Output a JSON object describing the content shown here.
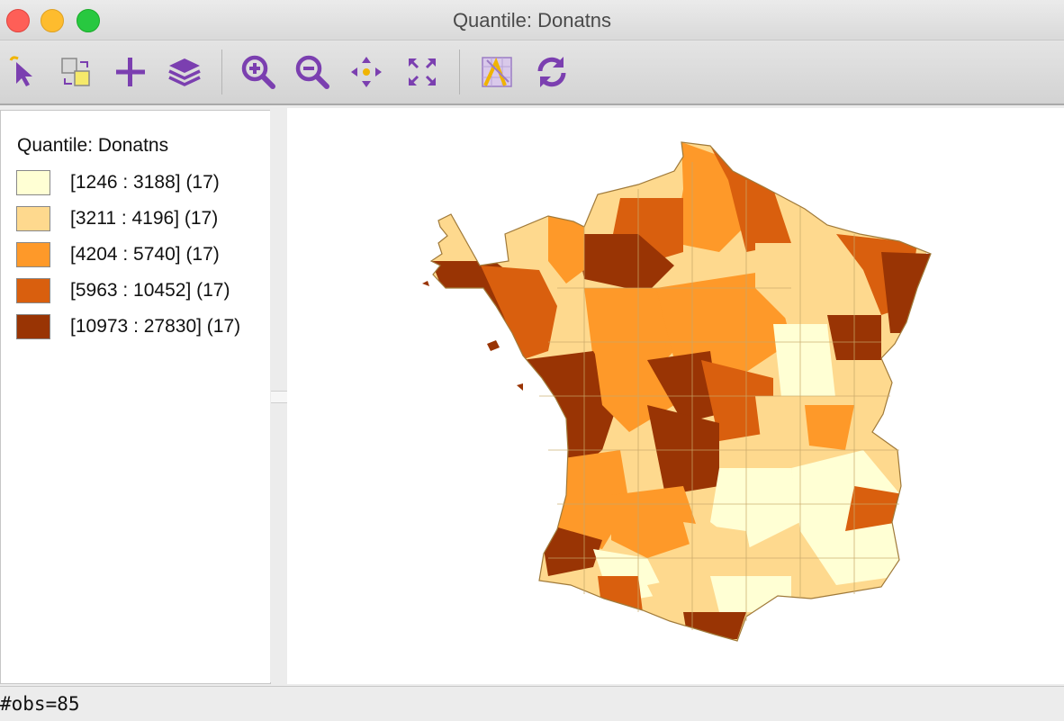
{
  "window": {
    "title": "Quantile: Donatns"
  },
  "toolbar": {
    "tools": [
      {
        "name": "select-tool",
        "icon": "select-arrow-icon"
      },
      {
        "name": "selection-shape-tool",
        "icon": "selection-shape-icon"
      },
      {
        "name": "add-tool",
        "icon": "plus-icon"
      },
      {
        "name": "layers-tool",
        "icon": "layers-icon"
      },
      {
        "name": "zoom-in-tool",
        "icon": "zoom-in-icon"
      },
      {
        "name": "zoom-out-tool",
        "icon": "zoom-out-icon"
      },
      {
        "name": "pan-tool",
        "icon": "pan-arrows-icon"
      },
      {
        "name": "full-extent-tool",
        "icon": "full-extent-icon"
      },
      {
        "name": "basemap-tool",
        "icon": "basemap-icon"
      },
      {
        "name": "refresh-tool",
        "icon": "refresh-icon"
      }
    ]
  },
  "legend": {
    "title": "Quantile: Donatns",
    "items": [
      {
        "label": "[1246 : 3188] (17)",
        "color": "#ffffd4"
      },
      {
        "label": "[3211 : 4196] (17)",
        "color": "#fed98e"
      },
      {
        "label": "[4204 : 5740] (17)",
        "color": "#fe9929"
      },
      {
        "label": "[5963 : 10452] (17)",
        "color": "#d95f0e"
      },
      {
        "label": "[10973 : 27830] (17)",
        "color": "#993404"
      }
    ]
  },
  "map": {
    "accent_icon_color": "#7b3fb0",
    "observations": 85
  },
  "status": {
    "text": "#obs=85"
  }
}
